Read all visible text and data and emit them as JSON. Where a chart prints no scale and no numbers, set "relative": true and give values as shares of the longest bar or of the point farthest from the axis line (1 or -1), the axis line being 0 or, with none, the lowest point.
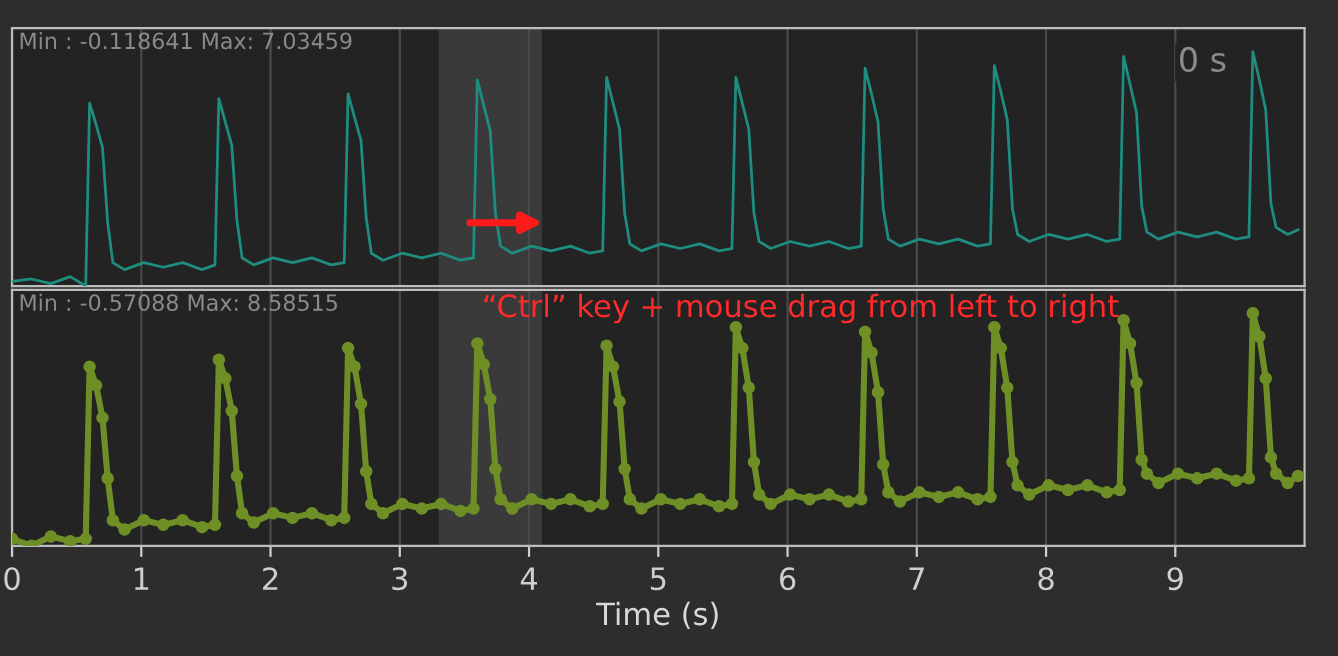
{
  "chart_data": [
    {
      "type": "line",
      "relative": true,
      "xlim": [
        0,
        10
      ],
      "xticks": [
        0,
        1,
        2,
        3,
        4,
        5,
        6,
        7,
        8,
        9
      ],
      "tick_labels": false,
      "grid": "x",
      "marker": "none",
      "line_style": "solid",
      "annotations": [
        "Min : -0.118641 Max: 7.03459",
        "0 s"
      ],
      "bands": [
        {
          "axis": "x",
          "from": 3.3,
          "to": 4.1,
          "color": "#3a3a3a"
        }
      ],
      "x": [
        0,
        0.15,
        0.3,
        0.45,
        0.57,
        0.6,
        0.65,
        0.7,
        0.74,
        0.78,
        0.87,
        1.02,
        1.17,
        1.32,
        1.47,
        1.57,
        1.6,
        1.65,
        1.7,
        1.74,
        1.78,
        1.87,
        2.02,
        2.17,
        2.32,
        2.47,
        2.57,
        2.6,
        2.65,
        2.7,
        2.74,
        2.78,
        2.87,
        3.02,
        3.17,
        3.32,
        3.47,
        3.57,
        3.6,
        3.65,
        3.7,
        3.74,
        3.78,
        3.87,
        4.02,
        4.17,
        4.32,
        4.47,
        4.57,
        4.6,
        4.65,
        4.7,
        4.74,
        4.78,
        4.87,
        5.02,
        5.17,
        5.32,
        5.47,
        5.57,
        5.6,
        5.65,
        5.7,
        5.74,
        5.78,
        5.87,
        6.02,
        6.17,
        6.32,
        6.47,
        6.57,
        6.6,
        6.65,
        6.7,
        6.74,
        6.78,
        6.87,
        7.02,
        7.17,
        7.32,
        7.47,
        7.57,
        7.6,
        7.65,
        7.7,
        7.74,
        7.78,
        7.87,
        8.02,
        8.17,
        8.32,
        8.47,
        8.57,
        8.6,
        8.65,
        8.7,
        8.74,
        8.78,
        8.87,
        9.02,
        9.17,
        9.32,
        9.47,
        9.57,
        9.6,
        9.65,
        9.7,
        9.74,
        9.78,
        9.87,
        9.95
      ],
      "series": [
        {
          "color": "#1e8c7e",
          "values": [
            0.02,
            0.03,
            0.01,
            0.04,
            0.0,
            0.78,
            0.69,
            0.59,
            0.27,
            0.1,
            0.07,
            0.1,
            0.08,
            0.1,
            0.07,
            0.09,
            0.8,
            0.7,
            0.6,
            0.28,
            0.12,
            0.09,
            0.12,
            0.1,
            0.12,
            0.09,
            0.1,
            0.82,
            0.72,
            0.62,
            0.29,
            0.14,
            0.11,
            0.14,
            0.12,
            0.14,
            0.11,
            0.12,
            0.88,
            0.77,
            0.66,
            0.31,
            0.17,
            0.14,
            0.17,
            0.15,
            0.17,
            0.14,
            0.15,
            0.89,
            0.78,
            0.67,
            0.31,
            0.18,
            0.15,
            0.18,
            0.16,
            0.18,
            0.15,
            0.16,
            0.89,
            0.78,
            0.67,
            0.31,
            0.19,
            0.16,
            0.19,
            0.17,
            0.19,
            0.16,
            0.17,
            0.93,
            0.82,
            0.7,
            0.33,
            0.2,
            0.17,
            0.2,
            0.18,
            0.2,
            0.17,
            0.18,
            0.94,
            0.83,
            0.71,
            0.33,
            0.22,
            0.19,
            0.22,
            0.2,
            0.22,
            0.19,
            0.2,
            0.98,
            0.86,
            0.74,
            0.34,
            0.23,
            0.2,
            0.23,
            0.21,
            0.23,
            0.2,
            0.21,
            1.0,
            0.88,
            0.75,
            0.35,
            0.25,
            0.22,
            0.24
          ]
        }
      ]
    },
    {
      "type": "line",
      "relative": true,
      "xlim": [
        0,
        10
      ],
      "xticks": [
        0,
        1,
        2,
        3,
        4,
        5,
        6,
        7,
        8,
        9
      ],
      "tick_labels": "x",
      "xlabel": "Time (s)",
      "grid": "x",
      "marker": "circle",
      "line_style": "solid",
      "annotations": [
        "Min : -0.57088 Max: 8.58515",
        "“Ctrl” key + mouse drag from left to right"
      ],
      "bands": [
        {
          "axis": "x",
          "from": 3.3,
          "to": 4.1,
          "color": "#3a3a3a"
        }
      ],
      "x": [
        0,
        0.15,
        0.3,
        0.45,
        0.57,
        0.6,
        0.65,
        0.7,
        0.74,
        0.78,
        0.87,
        1.02,
        1.17,
        1.32,
        1.47,
        1.57,
        1.6,
        1.65,
        1.7,
        1.74,
        1.78,
        1.87,
        2.02,
        2.17,
        2.32,
        2.47,
        2.57,
        2.6,
        2.65,
        2.7,
        2.74,
        2.78,
        2.87,
        3.02,
        3.17,
        3.32,
        3.47,
        3.57,
        3.6,
        3.65,
        3.7,
        3.74,
        3.78,
        3.87,
        4.02,
        4.17,
        4.32,
        4.47,
        4.57,
        4.6,
        4.65,
        4.7,
        4.74,
        4.78,
        4.87,
        5.02,
        5.17,
        5.32,
        5.47,
        5.57,
        5.6,
        5.65,
        5.7,
        5.74,
        5.78,
        5.87,
        6.02,
        6.17,
        6.32,
        6.47,
        6.57,
        6.6,
        6.65,
        6.7,
        6.74,
        6.78,
        6.87,
        7.02,
        7.17,
        7.32,
        7.47,
        7.57,
        7.6,
        7.65,
        7.7,
        7.74,
        7.78,
        7.87,
        8.02,
        8.17,
        8.32,
        8.47,
        8.57,
        8.6,
        8.65,
        8.7,
        8.74,
        8.78,
        8.87,
        9.02,
        9.17,
        9.32,
        9.47,
        9.57,
        9.6,
        9.65,
        9.7,
        9.74,
        9.78,
        9.87,
        9.95
      ],
      "series": [
        {
          "color": "#6e8f26",
          "values": [
            0.03,
            0.0,
            0.04,
            0.02,
            0.03,
            0.77,
            0.69,
            0.55,
            0.29,
            0.11,
            0.07,
            0.11,
            0.09,
            0.11,
            0.08,
            0.09,
            0.8,
            0.72,
            0.58,
            0.3,
            0.14,
            0.1,
            0.14,
            0.12,
            0.14,
            0.11,
            0.12,
            0.85,
            0.77,
            0.61,
            0.32,
            0.18,
            0.14,
            0.18,
            0.16,
            0.18,
            0.15,
            0.16,
            0.87,
            0.78,
            0.63,
            0.33,
            0.2,
            0.16,
            0.2,
            0.18,
            0.2,
            0.17,
            0.18,
            0.86,
            0.77,
            0.62,
            0.33,
            0.2,
            0.16,
            0.2,
            0.18,
            0.2,
            0.17,
            0.18,
            0.94,
            0.85,
            0.68,
            0.36,
            0.22,
            0.18,
            0.22,
            0.2,
            0.22,
            0.19,
            0.2,
            0.92,
            0.83,
            0.66,
            0.35,
            0.23,
            0.19,
            0.23,
            0.21,
            0.23,
            0.2,
            0.21,
            0.94,
            0.85,
            0.68,
            0.36,
            0.26,
            0.22,
            0.26,
            0.24,
            0.26,
            0.23,
            0.24,
            0.97,
            0.87,
            0.7,
            0.37,
            0.31,
            0.27,
            0.31,
            0.29,
            0.31,
            0.28,
            0.29,
            1.0,
            0.9,
            0.72,
            0.38,
            0.31,
            0.27,
            0.3
          ]
        }
      ]
    }
  ]
}
